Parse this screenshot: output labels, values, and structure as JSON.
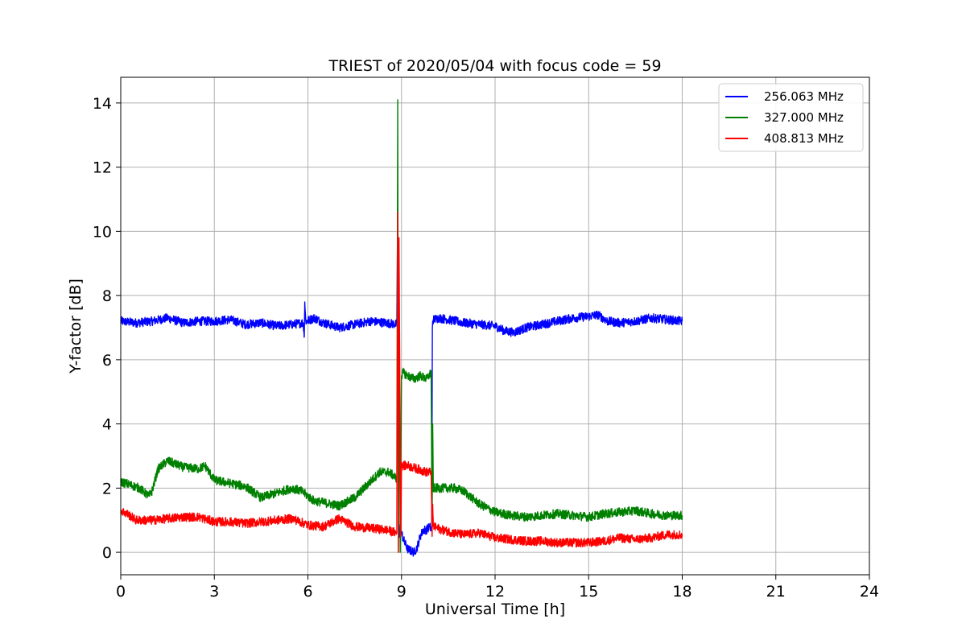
{
  "chart_data": {
    "type": "line",
    "title": "TRIEST of 2020/05/04 with focus code = 59",
    "xlabel": "Universal Time [h]",
    "ylabel": "Y-factor [dB]",
    "xlim": [
      0,
      24
    ],
    "ylim": [
      -0.7,
      14.8
    ],
    "xticks": [
      0,
      3,
      6,
      9,
      12,
      15,
      18,
      21,
      24
    ],
    "yticks": [
      0,
      2,
      4,
      6,
      8,
      10,
      12,
      14
    ],
    "grid": true,
    "legend_position": "top-right",
    "series": [
      {
        "name": "256.063 MHz",
        "color": "#0000ff",
        "x": [
          0,
          0.5,
          1,
          1.5,
          2,
          2.5,
          3,
          3.5,
          4,
          4.5,
          5,
          5.5,
          5.85,
          5.88,
          5.9,
          5.93,
          5.96,
          6.2,
          6.5,
          7,
          7.5,
          8,
          8.5,
          8.85,
          8.88,
          8.9,
          8.92,
          8.95,
          9.0,
          9.1,
          9.2,
          9.3,
          9.4,
          9.5,
          9.6,
          9.7,
          9.8,
          9.9,
          9.97,
          9.99,
          10.0,
          10.02,
          10.2,
          10.5,
          11,
          11.5,
          12,
          12.3,
          12.6,
          13,
          13.5,
          14,
          14.5,
          15,
          15.3,
          15.6,
          16,
          16.5,
          17,
          17.5,
          18
        ],
        "y": [
          7.2,
          7.15,
          7.2,
          7.3,
          7.15,
          7.2,
          7.2,
          7.25,
          7.1,
          7.15,
          7.05,
          7.1,
          7.15,
          6.7,
          7.8,
          7.2,
          7.2,
          7.3,
          7.15,
          7.0,
          7.1,
          7.2,
          7.15,
          7.1,
          10.7,
          1.0,
          0.5,
          0.8,
          0.6,
          0.3,
          0.1,
          0.05,
          0.0,
          0.15,
          0.5,
          0.7,
          0.7,
          0.8,
          0.7,
          7.0,
          7.2,
          7.25,
          7.3,
          7.25,
          7.15,
          7.1,
          7.05,
          6.9,
          6.85,
          7.0,
          7.1,
          7.2,
          7.3,
          7.35,
          7.4,
          7.2,
          7.15,
          7.2,
          7.3,
          7.25,
          7.2
        ]
      },
      {
        "name": "327.000 MHz",
        "color": "#008000",
        "x": [
          0,
          0.3,
          0.6,
          0.9,
          1.0,
          1.2,
          1.5,
          2,
          2.5,
          2.7,
          3,
          3.5,
          4,
          4.5,
          5,
          5.5,
          5.8,
          6.2,
          6.5,
          7,
          7.5,
          8,
          8.3,
          8.6,
          8.85,
          8.88,
          8.9,
          8.93,
          8.96,
          9.0,
          9.05,
          9.2,
          9.4,
          9.6,
          9.8,
          9.95,
          9.98,
          10.0,
          10.02,
          10.3,
          10.7,
          11,
          11.5,
          12,
          12.5,
          13,
          13.5,
          14,
          14.5,
          15,
          15.5,
          16,
          16.5,
          17,
          17.5,
          18
        ],
        "y": [
          2.2,
          2.1,
          2.0,
          1.75,
          1.9,
          2.6,
          2.85,
          2.65,
          2.6,
          2.7,
          2.25,
          2.15,
          2.05,
          1.7,
          1.85,
          2.0,
          1.9,
          1.6,
          1.55,
          1.45,
          1.7,
          2.2,
          2.5,
          2.5,
          2.3,
          14.1,
          0.0,
          5.8,
          0.0,
          5.5,
          5.6,
          5.5,
          5.4,
          5.5,
          5.4,
          5.6,
          0.5,
          4.0,
          2.0,
          2.0,
          2.0,
          1.9,
          1.5,
          1.25,
          1.15,
          1.1,
          1.15,
          1.2,
          1.15,
          1.1,
          1.2,
          1.25,
          1.3,
          1.2,
          1.15,
          1.15
        ]
      },
      {
        "name": "408.813 MHz",
        "color": "#ff0000",
        "x": [
          0,
          0.2,
          0.5,
          1,
          1.5,
          2,
          2.5,
          3,
          3.5,
          4,
          4.5,
          5,
          5.5,
          6,
          6.5,
          7,
          7.5,
          8,
          8.5,
          8.85,
          8.88,
          8.9,
          8.92,
          8.95,
          8.98,
          9.0,
          9.05,
          9.2,
          9.5,
          9.8,
          9.95,
          9.98,
          10.0,
          10.02,
          10.3,
          10.7,
          11,
          11.5,
          12,
          12.5,
          13,
          13.5,
          14,
          14.5,
          15,
          15.5,
          16,
          16.5,
          17,
          17.5,
          18
        ],
        "y": [
          1.3,
          1.2,
          1.0,
          1.0,
          1.05,
          1.1,
          1.1,
          0.95,
          0.95,
          0.9,
          0.95,
          1.0,
          1.05,
          0.85,
          0.8,
          1.05,
          0.8,
          0.75,
          0.7,
          0.6,
          10.6,
          0.0,
          9.8,
          5.0,
          0.5,
          2.8,
          2.7,
          2.7,
          2.6,
          2.5,
          2.5,
          0.5,
          1.5,
          0.8,
          0.7,
          0.6,
          0.55,
          0.6,
          0.45,
          0.4,
          0.35,
          0.35,
          0.3,
          0.3,
          0.3,
          0.35,
          0.45,
          0.4,
          0.45,
          0.55,
          0.55
        ]
      }
    ]
  }
}
